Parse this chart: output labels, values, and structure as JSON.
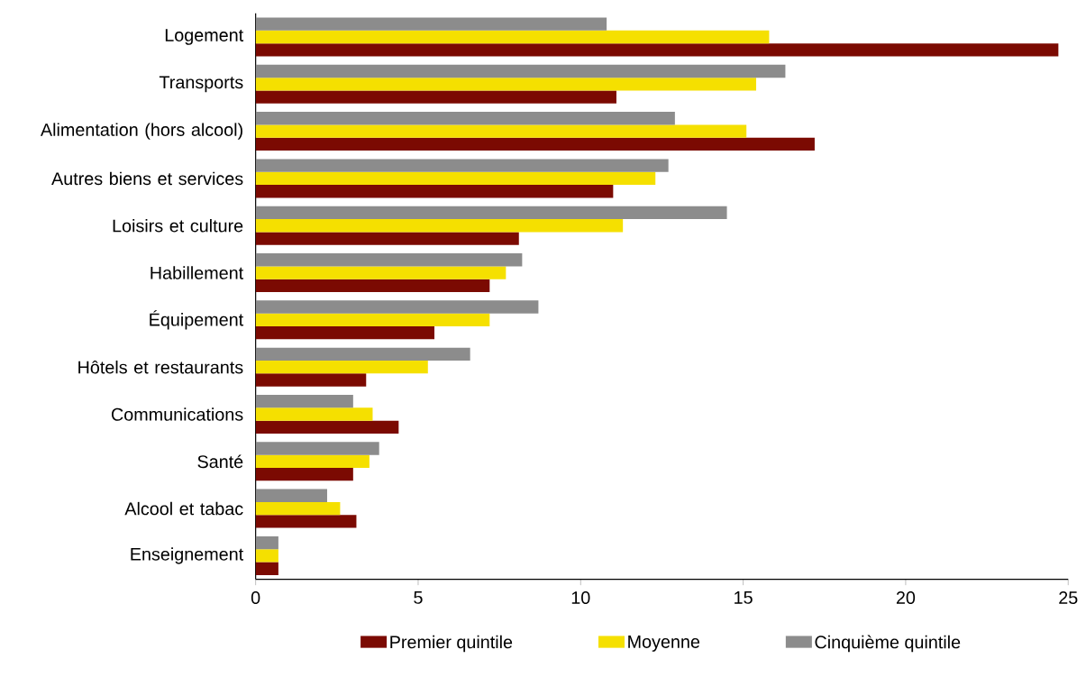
{
  "chart_data": {
    "type": "bar",
    "orientation": "horizontal",
    "categories": [
      "Logement",
      "Transports",
      "Alimentation (hors alcool)",
      "Autres biens et services",
      "Loisirs et culture",
      "Habillement",
      "Équipement",
      "Hôtels et restaurants",
      "Communications",
      "Santé",
      "Alcool et tabac",
      "Enseignement"
    ],
    "series": [
      {
        "name": "Premier quintile",
        "color": "#7b0a02",
        "values": [
          24.7,
          11.1,
          17.2,
          11.0,
          8.1,
          7.2,
          5.5,
          3.4,
          4.4,
          3.0,
          3.1,
          0.7
        ]
      },
      {
        "name": "Moyenne",
        "color": "#f5e000",
        "values": [
          15.8,
          15.4,
          15.1,
          12.3,
          11.3,
          7.7,
          7.2,
          5.3,
          3.6,
          3.5,
          2.6,
          0.7
        ]
      },
      {
        "name": "Cinquième quintile",
        "color": "#8c8c8c",
        "values": [
          10.8,
          16.3,
          12.9,
          12.7,
          14.5,
          8.2,
          8.7,
          6.6,
          3.0,
          3.8,
          2.2,
          0.7
        ]
      }
    ],
    "xlim": [
      0,
      25
    ],
    "xticks": [
      0,
      5,
      10,
      15,
      20,
      25
    ],
    "legend": "bottom"
  }
}
